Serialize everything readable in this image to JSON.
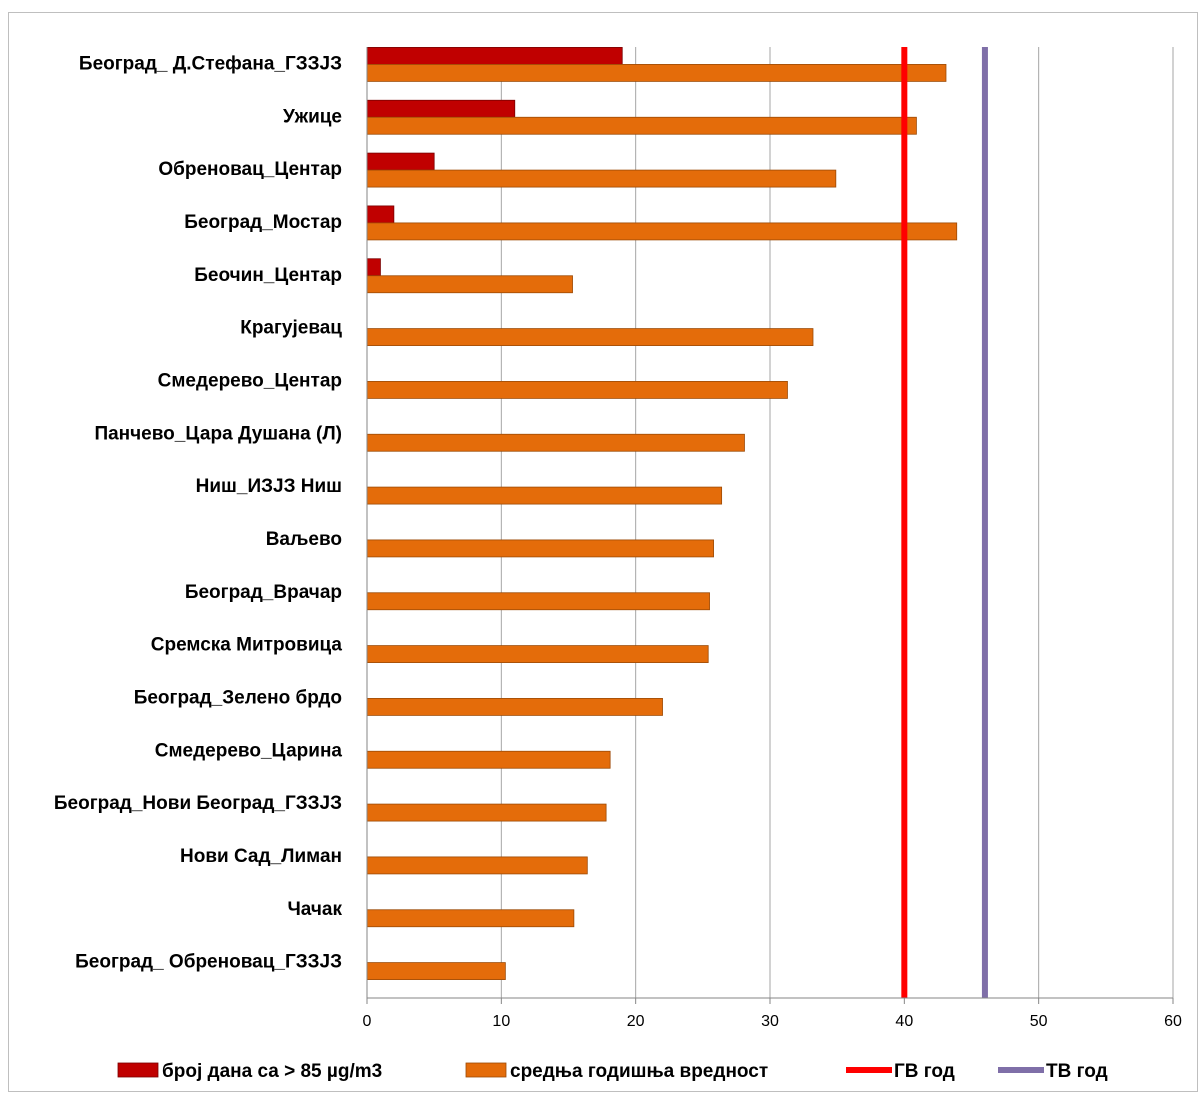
{
  "chart_data": {
    "type": "bar",
    "orientation": "horizontal",
    "categories": [
      "Београд_ Д.Стефана_ГЗЗЈЗ",
      "Ужице",
      "Обреновац_Центар",
      "Београд_Мостар",
      "Беочин_Центар",
      "Крагујевац",
      "Смедерево_Центар",
      "Панчево_Цара Душана (Л)",
      "Ниш_ИЗЈЗ Ниш",
      "Ваљево",
      "Београд_Врачар",
      "Сремска Митровица",
      "Београд_Зелено брдо",
      "Смедерево_Царина",
      "Београд_Нови Београд_ГЗЗЈЗ",
      "Нови Сад_Лиман",
      "Чачак",
      "Београд_ Обреновац_ГЗЗЈЗ"
    ],
    "series": [
      {
        "name": "број дана са  > 85 µg/m3",
        "color": "#c00000",
        "values": [
          19,
          11,
          5,
          2,
          1,
          0,
          0,
          0,
          0,
          0,
          0,
          0,
          0,
          0,
          0,
          0,
          0,
          0
        ]
      },
      {
        "name": "средња годишња вредност",
        "color": "#e46c0a",
        "values": [
          43.1,
          40.9,
          34.9,
          43.9,
          15.3,
          33.2,
          31.3,
          28.1,
          26.4,
          25.8,
          25.5,
          25.4,
          22.0,
          18.1,
          17.8,
          16.4,
          15.4,
          10.3
        ]
      }
    ],
    "reference_lines": [
      {
        "name": "ГВ год",
        "value": 40,
        "color": "#ff0000"
      },
      {
        "name": "ТВ год",
        "value": 46,
        "color": "#7f6fa8"
      }
    ],
    "xlim": [
      0,
      60
    ],
    "xticks": [
      0,
      10,
      20,
      30,
      40,
      50,
      60
    ],
    "grid": "vertical",
    "legend_position": "bottom"
  }
}
